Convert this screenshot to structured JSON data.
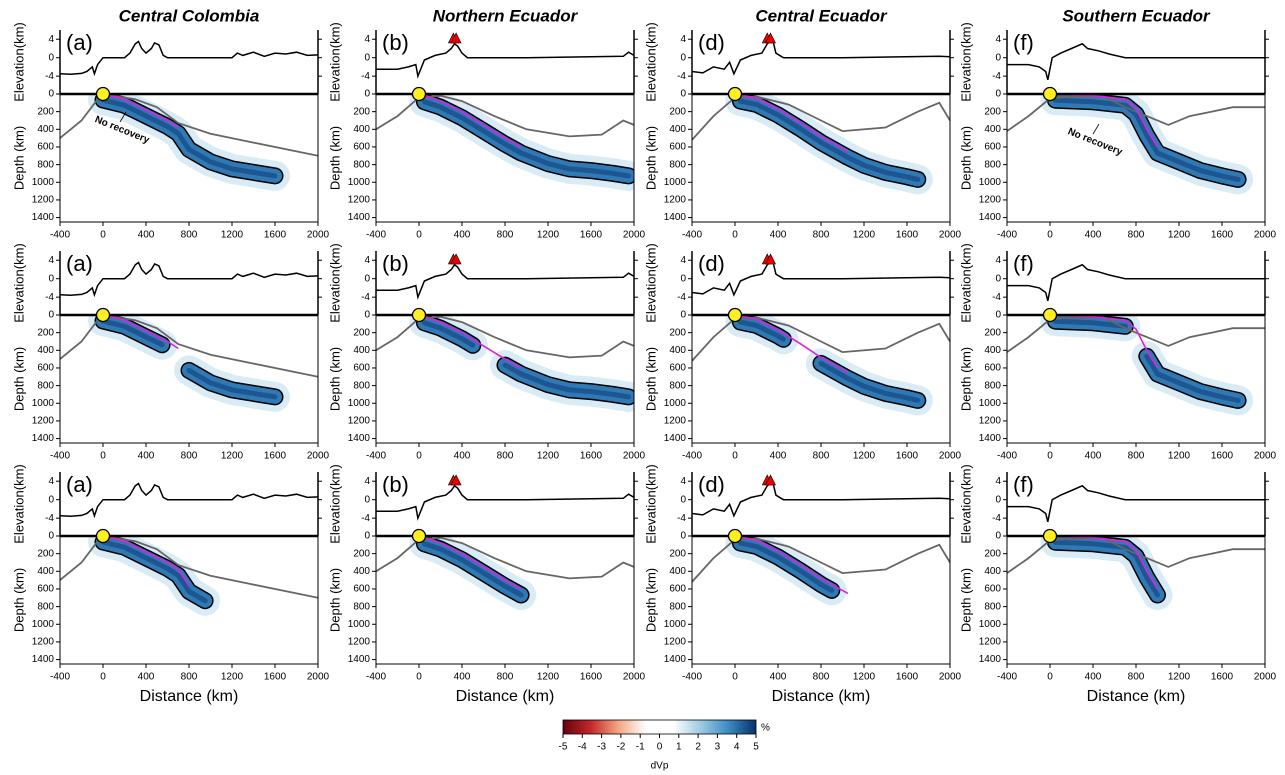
{
  "chart_data": {
    "type": "section",
    "xlim": [
      -400,
      2000
    ],
    "xticks": [
      -400,
      0,
      400,
      800,
      1200,
      1600,
      2000
    ],
    "xlabel": "Distance (km)",
    "elev_ylim": [
      -7,
      6
    ],
    "elev_yticks": [
      -4,
      0,
      4
    ],
    "elev_ylabel": "Elevation(km)",
    "depth_ylim": [
      1450,
      0
    ],
    "depth_yticks": [
      0,
      200,
      400,
      600,
      800,
      1000,
      1200,
      1400
    ],
    "depth_ylabel": "Depth (km)",
    "columns": [
      {
        "title": "Central Colombia",
        "label": "(a)",
        "elevation": {
          "x": [
            -400,
            -300,
            -200,
            -150,
            -100,
            -80,
            -50,
            0,
            100,
            200,
            250,
            300,
            330,
            360,
            400,
            450,
            480,
            520,
            560,
            600,
            1000,
            1200,
            1250,
            1300,
            1400,
            1500,
            1600,
            1700,
            1800,
            1900,
            2000
          ],
          "y": [
            -3.5,
            -3.6,
            -3.4,
            -3,
            -2,
            -3.5,
            -1.5,
            0,
            0,
            0,
            1,
            3,
            3.5,
            2,
            1,
            2,
            3.2,
            2.8,
            0.5,
            0,
            0,
            0,
            1,
            0.5,
            1.2,
            0.3,
            1,
            0.8,
            1.2,
            0.5,
            0.6
          ]
        },
        "volcanoes": [],
        "slab": {
          "x": [
            0,
            200,
            400,
            600,
            700,
            800,
            1000,
            1200,
            1400,
            1600
          ],
          "depth": [
            0,
            60,
            180,
            300,
            380,
            560,
            700,
            780,
            820,
            860
          ]
        },
        "outline": {
          "x": [
            -400,
            -200,
            -50,
            100,
            300,
            500,
            700,
            1000,
            1400,
            1800,
            2000
          ],
          "depth": [
            500,
            300,
            60,
            20,
            60,
            150,
            330,
            450,
            550,
            650,
            700
          ]
        },
        "panels": [
          {
            "slab_end": 700,
            "anomaly": [
              [
                0,
                1600
              ]
            ],
            "annotation": "No recovery"
          },
          {
            "slab_end": 700,
            "anomaly": [
              [
                0,
                550
              ],
              [
                800,
                1600
              ]
            ]
          },
          {
            "slab_end": 800,
            "anomaly": [
              [
                0,
                950
              ]
            ]
          }
        ]
      },
      {
        "title": "Northern Ecuador",
        "label": "(b)",
        "elevation": {
          "x": [
            -400,
            -200,
            -100,
            -30,
            -10,
            50,
            150,
            250,
            300,
            330,
            360,
            400,
            450,
            600,
            1000,
            1900,
            1950,
            2000
          ],
          "y": [
            -2.5,
            -2.5,
            -2,
            -1.5,
            -4,
            -0.5,
            0.5,
            1,
            2,
            3,
            2.5,
            1,
            0,
            0,
            0,
            0.3,
            1.2,
            0.5
          ]
        },
        "volcanoes": [
          320,
          345
        ],
        "slab": {
          "x": [
            0,
            200,
            400,
            600,
            800,
            950,
            1200,
            1400,
            1600,
            1800,
            1950
          ],
          "depth": [
            0,
            80,
            200,
            350,
            500,
            600,
            720,
            780,
            800,
            830,
            860
          ]
        },
        "outline": {
          "x": [
            -400,
            -200,
            0,
            200,
            400,
            700,
            1000,
            1400,
            1700,
            1900,
            2000
          ],
          "depth": [
            400,
            250,
            40,
            20,
            80,
            250,
            400,
            480,
            460,
            300,
            350
          ]
        },
        "panels": [
          {
            "slab_end": 950,
            "anomaly": [
              [
                50,
                1950
              ]
            ]
          },
          {
            "slab_end": 950,
            "anomaly": [
              [
                50,
                500
              ],
              [
                800,
                1950
              ]
            ]
          },
          {
            "slab_end": 950,
            "anomaly": [
              [
                50,
                950
              ]
            ]
          }
        ]
      },
      {
        "title": "Central Ecuador",
        "label": "(d)",
        "elevation": {
          "x": [
            -400,
            -300,
            -200,
            -100,
            -50,
            -10,
            50,
            150,
            250,
            300,
            350,
            380,
            450,
            600,
            1000,
            1900,
            2000
          ],
          "y": [
            -3,
            -3.3,
            -2,
            -2.5,
            -1,
            -3.5,
            -0.5,
            0.5,
            1,
            3,
            4,
            1,
            0,
            0,
            0,
            0.3,
            0.2
          ]
        },
        "volcanoes": [
          300,
          330
        ],
        "slab": {
          "x": [
            0,
            200,
            400,
            600,
            800,
            1050,
            1200,
            1400,
            1600,
            1700
          ],
          "depth": [
            0,
            50,
            170,
            320,
            480,
            650,
            740,
            820,
            870,
            900
          ]
        },
        "outline": {
          "x": [
            -400,
            -200,
            0,
            200,
            500,
            800,
            1000,
            1400,
            1700,
            1900,
            2000
          ],
          "depth": [
            520,
            250,
            40,
            30,
            120,
            300,
            420,
            380,
            200,
            100,
            300
          ]
        },
        "panels": [
          {
            "slab_end": 1050,
            "anomaly": [
              [
                50,
                1700
              ]
            ]
          },
          {
            "slab_end": 1050,
            "anomaly": [
              [
                50,
                450
              ],
              [
                800,
                1700
              ]
            ]
          },
          {
            "slab_end": 1050,
            "anomaly": [
              [
                50,
                900
              ]
            ]
          }
        ]
      },
      {
        "title": "Southern Ecuador",
        "label": "(f)",
        "elevation": {
          "x": [
            -400,
            -200,
            -100,
            -40,
            -20,
            20,
            100,
            200,
            300,
            350,
            450,
            550,
            700,
            1000,
            2000
          ],
          "y": [
            -1.5,
            -1.5,
            -2,
            -3,
            -4.8,
            0,
            1,
            2,
            3,
            2,
            1.5,
            0.8,
            0,
            0,
            0
          ]
        },
        "volcanoes": [],
        "slab": {
          "x": [
            0,
            400,
            700,
            800,
            900,
            1000,
            1200,
            1400,
            1600,
            1750
          ],
          "depth": [
            0,
            20,
            60,
            160,
            400,
            600,
            700,
            800,
            860,
            900
          ]
        },
        "outline": {
          "x": [
            -400,
            -200,
            0,
            200,
            500,
            700,
            900,
            1100,
            1300,
            1500,
            1700,
            2000
          ],
          "depth": [
            420,
            250,
            50,
            30,
            30,
            150,
            250,
            350,
            250,
            200,
            150,
            150
          ]
        },
        "panels": [
          {
            "slab_end": 1000,
            "anomaly": [
              [
                50,
                1750
              ]
            ],
            "annotation": "No recovery"
          },
          {
            "slab_end": 1000,
            "anomaly": [
              [
                50,
                700
              ],
              [
                900,
                1750
              ]
            ]
          },
          {
            "slab_end": 1000,
            "anomaly": [
              [
                50,
                1000
              ]
            ]
          }
        ]
      }
    ],
    "colorbar": {
      "label": "dVp",
      "unit": "%",
      "lim": [
        -5,
        5
      ],
      "ticks": [
        -5,
        -4,
        -3,
        -2,
        -1,
        0,
        1,
        2,
        3,
        4,
        5
      ],
      "colors": [
        "#67000d",
        "#c0282b",
        "#f4a582",
        "#ffffff",
        "#ffffff",
        "#9ecae1",
        "#3b8bc2",
        "#08306b"
      ]
    }
  }
}
